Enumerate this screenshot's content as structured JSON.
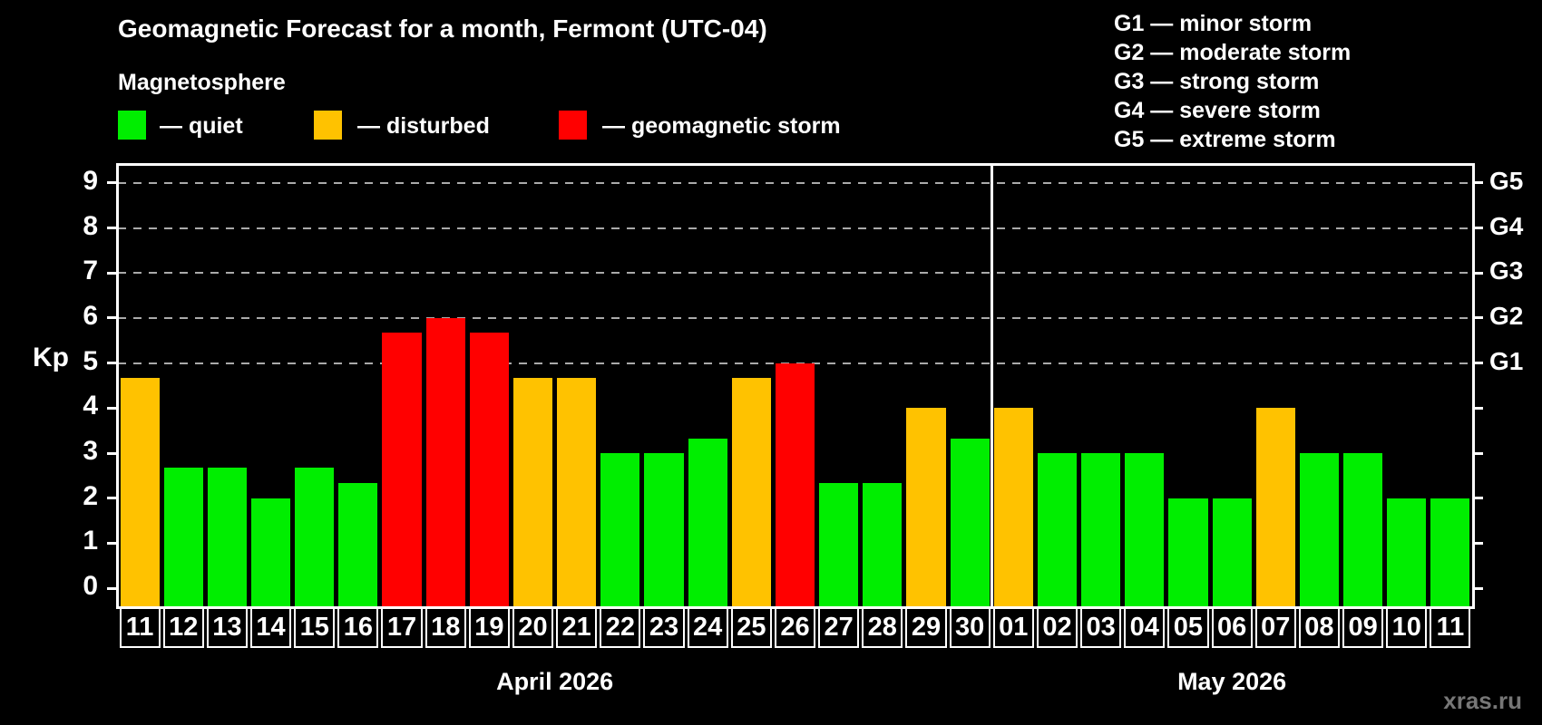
{
  "title": "Geomagnetic Forecast for a month, Fermont (UTC-04)",
  "subtitle": "Magnetosphere",
  "legend": {
    "quiet_label": "— quiet",
    "disturbed_label": "— disturbed",
    "storm_label": "— geomagnetic storm"
  },
  "g_legend": [
    "G1 — minor storm",
    "G2 — moderate storm",
    "G3 — strong storm",
    "G4 — severe storm",
    "G5 — extreme storm"
  ],
  "axis": {
    "kp_label": "Kp",
    "y_ticks": [
      0,
      1,
      2,
      3,
      4,
      5,
      6,
      7,
      8,
      9
    ],
    "g_levels": [
      {
        "label": "G1",
        "kp": 5
      },
      {
        "label": "G2",
        "kp": 6
      },
      {
        "label": "G3",
        "kp": 7
      },
      {
        "label": "G4",
        "kp": 8
      },
      {
        "label": "G5",
        "kp": 9
      }
    ]
  },
  "colors": {
    "quiet": "#00ee00",
    "disturbed": "#ffc200",
    "storm": "#ff0000",
    "grid": "#aaaaaa",
    "background": "#000000"
  },
  "watermark": "xras.ru",
  "chart_data": {
    "type": "bar",
    "title": "Geomagnetic Forecast for a month, Fermont (UTC-04)",
    "subtitle": "Magnetosphere",
    "ylabel": "Kp",
    "ylim": [
      0,
      9
    ],
    "grid": "horizontal dashed lines at Kp 5,6,7,8,9 (G1–G5)",
    "legend_position": "top",
    "months": [
      {
        "name": "April 2026",
        "days": [
          "11",
          "12",
          "13",
          "14",
          "15",
          "16",
          "17",
          "18",
          "19",
          "20",
          "21",
          "22",
          "23",
          "24",
          "25",
          "26",
          "27",
          "28",
          "29",
          "30"
        ],
        "values": [
          4.67,
          2.67,
          2.67,
          2.0,
          2.67,
          2.33,
          5.67,
          6.0,
          5.67,
          4.67,
          4.67,
          3.0,
          3.0,
          3.33,
          4.67,
          5.0,
          2.33,
          2.33,
          4.0,
          3.33
        ],
        "status": [
          "disturbed",
          "quiet",
          "quiet",
          "quiet",
          "quiet",
          "quiet",
          "storm",
          "storm",
          "storm",
          "disturbed",
          "disturbed",
          "quiet",
          "quiet",
          "quiet",
          "disturbed",
          "storm",
          "quiet",
          "quiet",
          "disturbed",
          "quiet"
        ]
      },
      {
        "name": "May 2026",
        "days": [
          "01",
          "02",
          "03",
          "04",
          "05",
          "06",
          "07",
          "08",
          "09",
          "10",
          "11"
        ],
        "values": [
          4.0,
          3.0,
          3.0,
          3.0,
          2.0,
          2.0,
          4.0,
          3.0,
          3.0,
          2.0,
          2.0
        ],
        "status": [
          "disturbed",
          "quiet",
          "quiet",
          "quiet",
          "quiet",
          "quiet",
          "disturbed",
          "quiet",
          "quiet",
          "quiet",
          "quiet"
        ]
      }
    ]
  }
}
